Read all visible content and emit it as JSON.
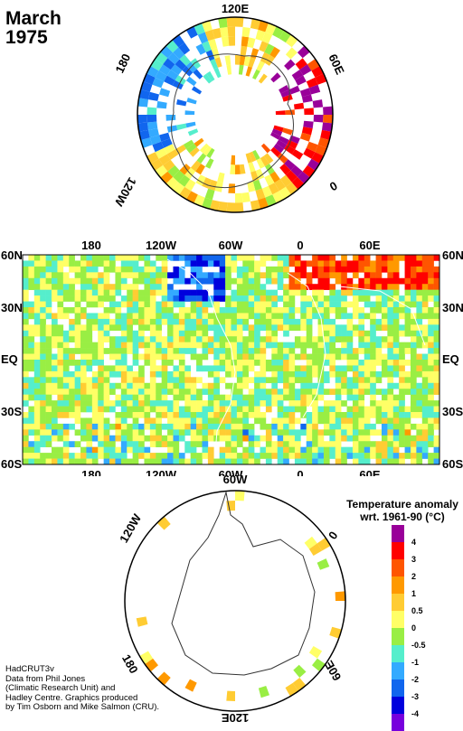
{
  "title": {
    "month": "March",
    "year": "1975"
  },
  "north_map": {
    "labels": [
      "120E",
      "60E",
      "0",
      "120W",
      "180"
    ]
  },
  "main_map": {
    "top_labels": [
      "180",
      "120W",
      "60W",
      "0",
      "60E"
    ],
    "bottom_labels": [
      "180",
      "120W",
      "60W",
      "0",
      "60E"
    ],
    "lat_labels": [
      "60N",
      "30N",
      "EQ",
      "30S",
      "60S"
    ]
  },
  "south_map": {
    "labels": [
      "60W",
      "0",
      "120W",
      "180",
      "60E",
      "120E"
    ]
  },
  "legend": {
    "title_line1": "Temperature anomaly",
    "title_line2": "wrt. 1961-90  (°C)",
    "ticks": [
      "4",
      "3",
      "2",
      "1",
      "0.5",
      "0",
      "-0.5",
      "-1",
      "-2",
      "-3",
      "-4"
    ],
    "colors": [
      "#990099",
      "#ff0000",
      "#ff5500",
      "#ff9900",
      "#ffcc33",
      "#ffff66",
      "#99ee44",
      "#55eecc",
      "#33aaff",
      "#1166ee",
      "#0000dd",
      "#7700dd"
    ]
  },
  "credits": [
    "HadCRUT3v",
    "Data from Phil Jones",
    "(Climatic Research Unit) and",
    "Hadley Centre.  Graphics produced",
    "by Tim Osborn and Mike Salmon (CRU)."
  ]
}
